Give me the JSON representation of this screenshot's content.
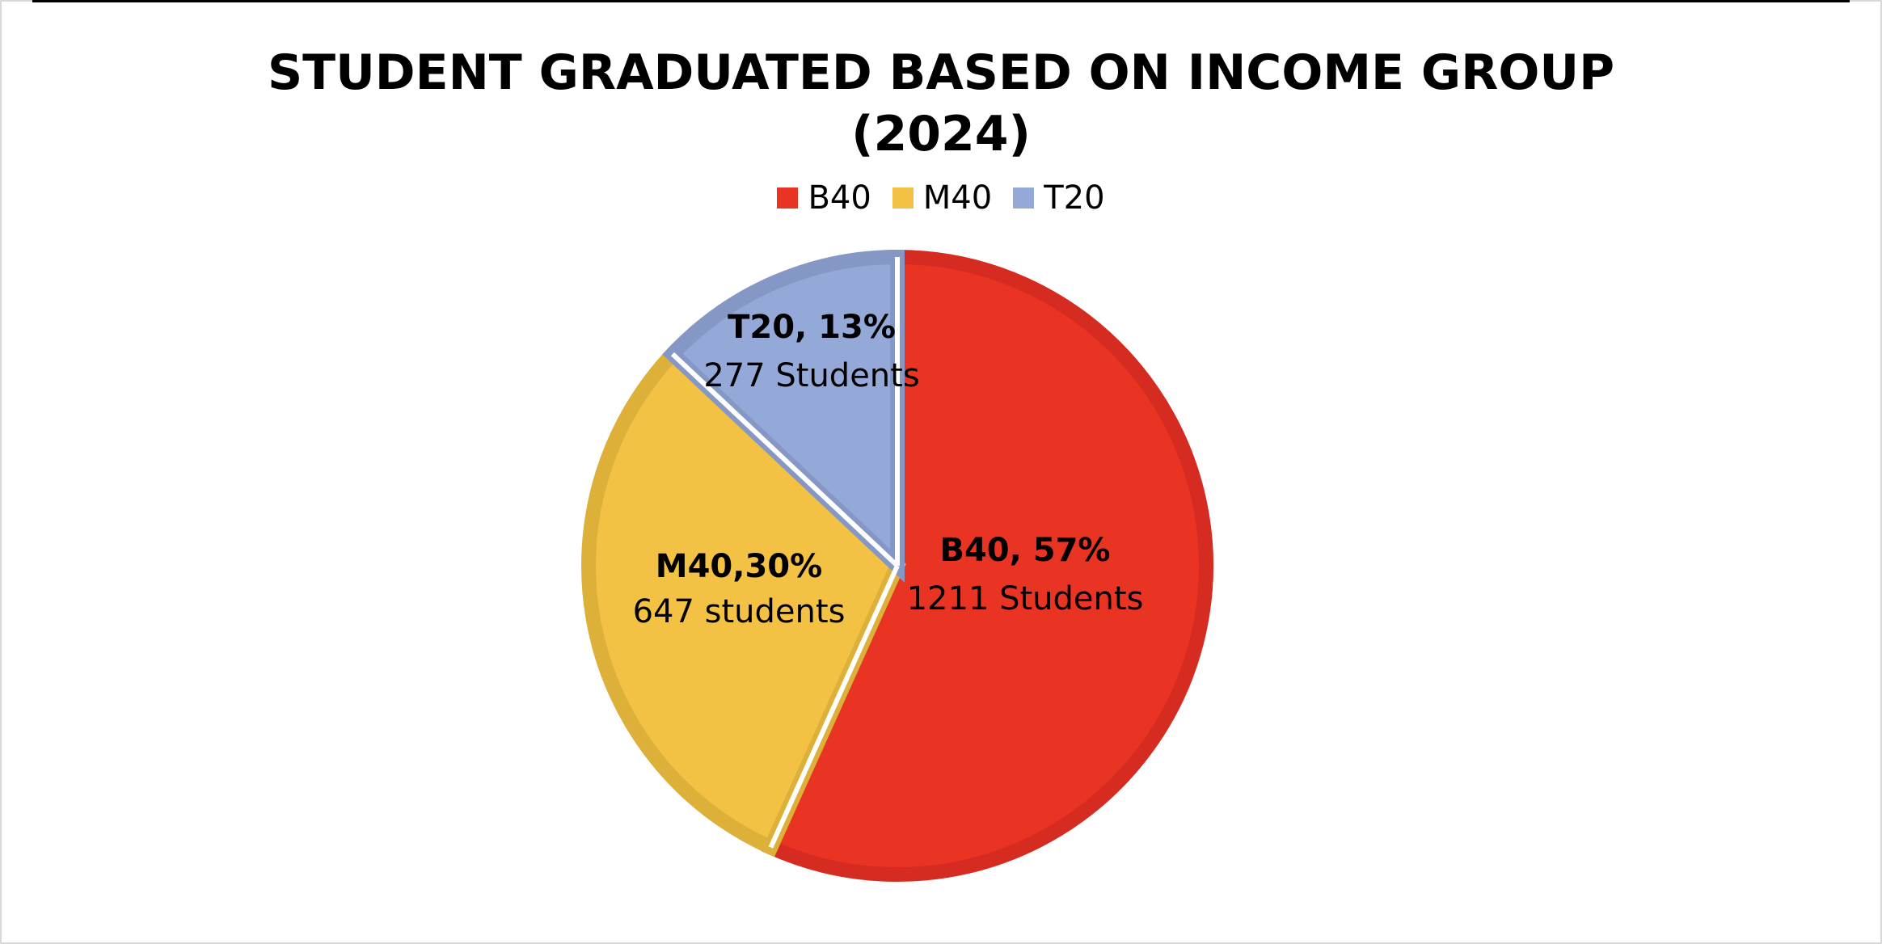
{
  "chart_data": {
    "type": "pie",
    "title_lines": [
      "STUDENT GRADUATED BASED ON INCOME GROUP",
      "(2024)"
    ],
    "legend_position": "top",
    "slices": [
      {
        "category": "B40",
        "value": 1211,
        "percent": 57,
        "label_main": "B40, 57%",
        "label_sub": "1211 Students",
        "color": "#E93323",
        "border_color": "#D62B20"
      },
      {
        "category": "M40",
        "value": 647,
        "percent": 30,
        "label_main": "M40,30%",
        "label_sub": "647 students",
        "color": "#F3C245",
        "border_color": "#DDB03A"
      },
      {
        "category": "T20",
        "value": 277,
        "percent": 13,
        "label_main": "T20, 13%",
        "label_sub": "277 Students",
        "color": "#95A9D8",
        "border_color": "#8597C4"
      }
    ]
  }
}
